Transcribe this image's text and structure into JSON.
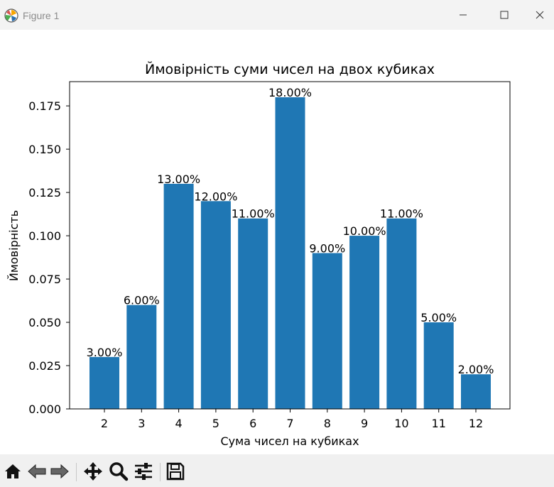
{
  "window": {
    "title": "Figure 1"
  },
  "toolbar": {
    "buttons": [
      "home-icon",
      "back-icon",
      "forward-icon",
      "pan-icon",
      "zoom-icon",
      "configure-subplots-icon",
      "save-icon"
    ]
  },
  "colors": {
    "bar": "#1f77b4",
    "titlebar": "#f3f3f3",
    "toolbar": "#f0f0f0"
  },
  "chart_data": {
    "type": "bar",
    "title": "Ймовірність суми чисел на двох кубиках",
    "xlabel": "Сума чисел на кубиках",
    "ylabel": "Ймовірність",
    "categories": [
      "2",
      "3",
      "4",
      "5",
      "6",
      "7",
      "8",
      "9",
      "10",
      "11",
      "12"
    ],
    "values": [
      0.03,
      0.06,
      0.13,
      0.12,
      0.11,
      0.18,
      0.09,
      0.1,
      0.11,
      0.05,
      0.02
    ],
    "value_labels": [
      "3.00%",
      "6.00%",
      "13.00%",
      "12.00%",
      "11.00%",
      "18.00%",
      "9.00%",
      "10.00%",
      "11.00%",
      "5.00%",
      "2.00%"
    ],
    "yticks": [
      "0.000",
      "0.025",
      "0.050",
      "0.075",
      "0.100",
      "0.125",
      "0.150",
      "0.175"
    ],
    "ylim": [
      0,
      0.189
    ],
    "grid": false,
    "legend": "none"
  }
}
